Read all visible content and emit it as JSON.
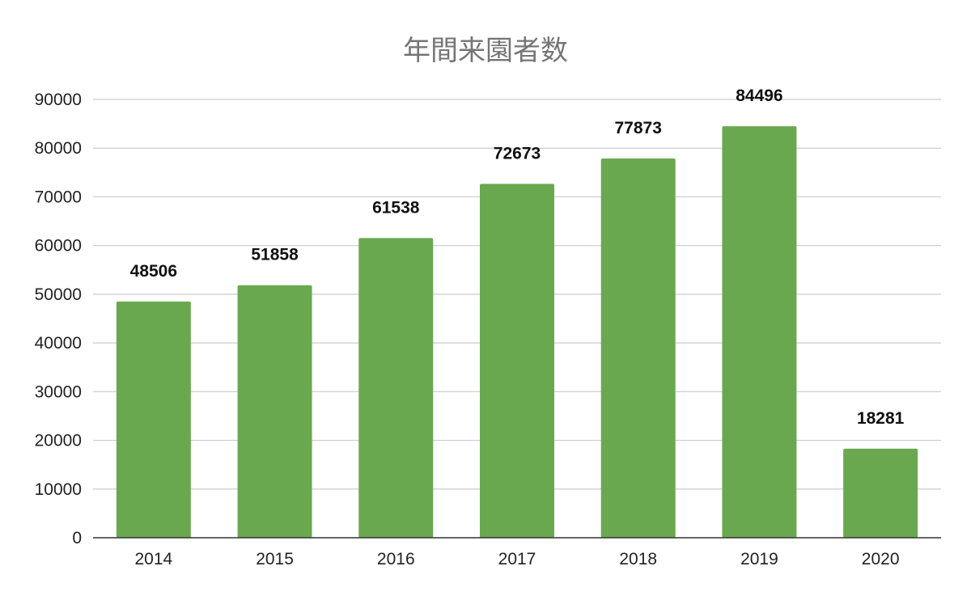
{
  "chart_data": {
    "type": "bar",
    "title": "年間来園者数",
    "xlabel": "",
    "ylabel": "",
    "categories": [
      "2014",
      "2015",
      "2016",
      "2017",
      "2018",
      "2019",
      "2020"
    ],
    "values": [
      48506,
      51858,
      61538,
      72673,
      77873,
      84496,
      18281
    ],
    "data_labels": [
      "48506",
      "51858",
      "61538",
      "72673",
      "77873",
      "84496",
      "18281"
    ],
    "ylim": [
      0,
      90000
    ],
    "y_ticks": [
      0,
      10000,
      20000,
      30000,
      40000,
      50000,
      60000,
      70000,
      80000,
      90000
    ],
    "y_tick_labels": [
      "0",
      "10000",
      "20000",
      "30000",
      "40000",
      "50000",
      "60000",
      "70000",
      "80000",
      "90000"
    ],
    "grid": true,
    "legend": false,
    "colors": {
      "bar": "#6aa84f",
      "grid": "#cccccc",
      "axis": "#333333",
      "title": "#757575"
    }
  }
}
